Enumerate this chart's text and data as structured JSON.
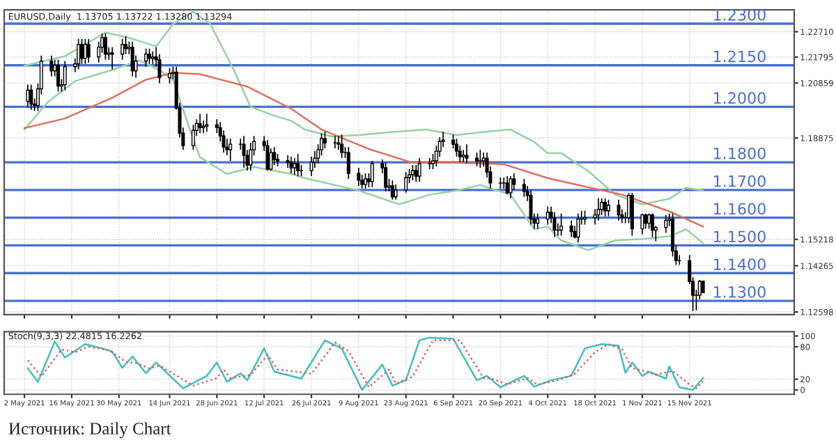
{
  "chart_data": [
    {
      "type": "candlestick",
      "title": "EURUSD,Daily  1.13705 1.13722 1.13280 1.13294",
      "x": [
        "2021-05-03",
        "2021-05-04",
        "2021-05-05",
        "2021-05-06",
        "2021-05-07",
        "2021-05-10",
        "2021-05-11",
        "2021-05-12",
        "2021-05-13",
        "2021-05-14",
        "2021-05-17",
        "2021-05-18",
        "2021-05-19",
        "2021-05-20",
        "2021-05-21",
        "2021-05-24",
        "2021-05-25",
        "2021-05-26",
        "2021-05-27",
        "2021-05-28",
        "2021-05-31",
        "2021-06-01",
        "2021-06-02",
        "2021-06-03",
        "2021-06-04",
        "2021-06-07",
        "2021-06-08",
        "2021-06-09",
        "2021-06-10",
        "2021-06-11",
        "2021-06-14",
        "2021-06-15",
        "2021-06-16",
        "2021-06-17",
        "2021-06-18",
        "2021-06-21",
        "2021-06-22",
        "2021-06-23",
        "2021-06-24",
        "2021-06-25",
        "2021-06-28",
        "2021-06-29",
        "2021-06-30",
        "2021-07-01",
        "2021-07-02",
        "2021-07-05",
        "2021-07-06",
        "2021-07-07",
        "2021-07-08",
        "2021-07-09",
        "2021-07-12",
        "2021-07-13",
        "2021-07-14",
        "2021-07-15",
        "2021-07-16",
        "2021-07-19",
        "2021-07-20",
        "2021-07-21",
        "2021-07-22",
        "2021-07-23",
        "2021-07-26",
        "2021-07-27",
        "2021-07-28",
        "2021-07-29",
        "2021-07-30",
        "2021-08-02",
        "2021-08-03",
        "2021-08-04",
        "2021-08-05",
        "2021-08-06",
        "2021-08-09",
        "2021-08-10",
        "2021-08-11",
        "2021-08-12",
        "2021-08-13",
        "2021-08-16",
        "2021-08-17",
        "2021-08-18",
        "2021-08-19",
        "2021-08-20",
        "2021-08-23",
        "2021-08-24",
        "2021-08-25",
        "2021-08-26",
        "2021-08-27",
        "2021-08-30",
        "2021-08-31",
        "2021-09-01",
        "2021-09-02",
        "2021-09-03",
        "2021-09-06",
        "2021-09-07",
        "2021-09-08",
        "2021-09-09",
        "2021-09-10",
        "2021-09-13",
        "2021-09-14",
        "2021-09-15",
        "2021-09-16",
        "2021-09-17",
        "2021-09-20",
        "2021-09-21",
        "2021-09-22",
        "2021-09-23",
        "2021-09-24",
        "2021-09-27",
        "2021-09-28",
        "2021-09-29",
        "2021-09-30",
        "2021-10-01",
        "2021-10-04",
        "2021-10-05",
        "2021-10-06",
        "2021-10-07",
        "2021-10-08",
        "2021-10-11",
        "2021-10-12",
        "2021-10-13",
        "2021-10-14",
        "2021-10-15",
        "2021-10-18",
        "2021-10-19",
        "2021-10-20",
        "2021-10-21",
        "2021-10-22",
        "2021-10-25",
        "2021-10-26",
        "2021-10-27",
        "2021-10-28",
        "2021-10-29",
        "2021-11-01",
        "2021-11-02",
        "2021-11-03",
        "2021-11-04",
        "2021-11-05",
        "2021-11-08",
        "2021-11-09",
        "2021-11-10",
        "2021-11-11",
        "2021-11-12",
        "2021-11-15",
        "2021-11-16",
        "2021-11-17",
        "2021-11-18",
        "2021-11-19"
      ],
      "ohlc": [
        [
          1.202,
          1.208,
          1.2,
          1.206
        ],
        [
          1.206,
          1.208,
          1.199,
          1.201
        ],
        [
          1.201,
          1.203,
          1.1985,
          1.2005
        ],
        [
          1.2005,
          1.2085,
          1.1985,
          1.2065
        ],
        [
          1.2065,
          1.2185,
          1.2045,
          1.2165
        ],
        [
          1.2165,
          1.2185,
          1.211,
          1.213
        ],
        [
          1.213,
          1.217,
          1.211,
          1.215
        ],
        [
          1.215,
          1.217,
          1.2055,
          1.2075
        ],
        [
          1.2075,
          1.21,
          1.2055,
          1.208
        ],
        [
          1.208,
          1.2165,
          1.206,
          1.2145
        ],
        [
          1.2145,
          1.2175,
          1.2125,
          1.2155
        ],
        [
          1.2155,
          1.2245,
          1.2135,
          1.2225
        ],
        [
          1.2225,
          1.2245,
          1.2155,
          1.2175
        ],
        [
          1.2175,
          1.2245,
          1.2155,
          1.2225
        ],
        [
          1.2225,
          1.2245,
          1.216,
          1.218
        ],
        [
          1.218,
          1.2235,
          1.216,
          1.2215
        ],
        [
          1.2215,
          1.2265,
          1.2195,
          1.225
        ],
        [
          1.225,
          1.2265,
          1.217,
          1.219
        ],
        [
          1.219,
          1.2215,
          1.217,
          1.2195
        ],
        [
          1.2195,
          1.2215,
          1.2135,
          1.219
        ],
        [
          1.219,
          1.2245,
          1.217,
          1.2225
        ],
        [
          1.2225,
          1.2255,
          1.219,
          1.221
        ],
        [
          1.221,
          1.2235,
          1.219,
          1.2215
        ],
        [
          1.2215,
          1.2235,
          1.211,
          1.213
        ],
        [
          1.213,
          1.2185,
          1.2105,
          1.2165
        ],
        [
          1.2165,
          1.221,
          1.2145,
          1.219
        ],
        [
          1.219,
          1.221,
          1.2155,
          1.2175
        ],
        [
          1.2175,
          1.22,
          1.2155,
          1.218
        ],
        [
          1.218,
          1.2215,
          1.2145,
          1.217
        ],
        [
          1.217,
          1.219,
          1.2085,
          1.2105
        ],
        [
          1.2105,
          1.214,
          1.2085,
          1.212
        ],
        [
          1.212,
          1.2145,
          1.21,
          1.2125
        ],
        [
          1.2125,
          1.2145,
          1.199,
          1.1995
        ],
        [
          1.1995,
          1.2015,
          1.189,
          1.1905
        ],
        [
          1.1905,
          1.1925,
          1.1845,
          1.186
        ],
        [
          1.186,
          1.1935,
          1.1845,
          1.1915
        ],
        [
          1.1915,
          1.1955,
          1.1895,
          1.194
        ],
        [
          1.194,
          1.1975,
          1.1905,
          1.1925
        ],
        [
          1.1925,
          1.195,
          1.1905,
          1.193
        ],
        [
          1.193,
          1.1975,
          1.191,
          1.1935
        ],
        [
          1.1935,
          1.1955,
          1.1905,
          1.1925
        ],
        [
          1.1925,
          1.1945,
          1.1875,
          1.1895
        ],
        [
          1.1895,
          1.1915,
          1.1835,
          1.1855
        ],
        [
          1.1855,
          1.1885,
          1.1825,
          1.1845
        ],
        [
          1.1845,
          1.1885,
          1.1805,
          1.1865
        ],
        [
          1.1865,
          1.1885,
          1.1845,
          1.1865
        ],
        [
          1.1865,
          1.1895,
          1.178,
          1.1825
        ],
        [
          1.1825,
          1.1845,
          1.177,
          1.179
        ],
        [
          1.179,
          1.187,
          1.177,
          1.1845
        ],
        [
          1.1845,
          1.1895,
          1.1825,
          1.1875
        ],
        [
          1.1875,
          1.1895,
          1.184,
          1.186
        ],
        [
          1.186,
          1.188,
          1.177,
          1.1775
        ],
        [
          1.1775,
          1.185,
          1.177,
          1.1835
        ],
        [
          1.1835,
          1.1855,
          1.179,
          1.181
        ],
        [
          1.181,
          1.183,
          1.1785,
          1.1805
        ],
        [
          1.1805,
          1.1825,
          1.178,
          1.18
        ],
        [
          1.18,
          1.182,
          1.176,
          1.178
        ],
        [
          1.178,
          1.1815,
          1.1755,
          1.1795
        ],
        [
          1.1795,
          1.183,
          1.175,
          1.177
        ],
        [
          1.177,
          1.179,
          1.175,
          1.177
        ],
        [
          1.177,
          1.182,
          1.175,
          1.18
        ],
        [
          1.18,
          1.184,
          1.178,
          1.1815
        ],
        [
          1.1815,
          1.1865,
          1.1795,
          1.1845
        ],
        [
          1.1845,
          1.1905,
          1.1825,
          1.1885
        ],
        [
          1.1885,
          1.191,
          1.185,
          1.187
        ],
        [
          1.187,
          1.1895,
          1.185,
          1.187
        ],
        [
          1.187,
          1.1895,
          1.1845,
          1.1865
        ],
        [
          1.1865,
          1.19,
          1.1815,
          1.1835
        ],
        [
          1.1835,
          1.1855,
          1.1815,
          1.1835
        ],
        [
          1.1835,
          1.1855,
          1.174,
          1.176
        ],
        [
          1.176,
          1.178,
          1.1715,
          1.1735
        ],
        [
          1.1735,
          1.1755,
          1.1705,
          1.172
        ],
        [
          1.172,
          1.176,
          1.1705,
          1.174
        ],
        [
          1.174,
          1.176,
          1.171,
          1.173
        ],
        [
          1.173,
          1.1805,
          1.171,
          1.1795
        ],
        [
          1.1795,
          1.181,
          1.176,
          1.178
        ],
        [
          1.178,
          1.18,
          1.1695,
          1.171
        ],
        [
          1.171,
          1.174,
          1.1695,
          1.1715
        ],
        [
          1.1715,
          1.1735,
          1.1665,
          1.1675
        ],
        [
          1.1675,
          1.172,
          1.1665,
          1.17
        ],
        [
          1.17,
          1.1765,
          1.169,
          1.1745
        ],
        [
          1.1745,
          1.1775,
          1.1725,
          1.1755
        ],
        [
          1.1755,
          1.179,
          1.1735,
          1.177
        ],
        [
          1.177,
          1.179,
          1.173,
          1.175
        ],
        [
          1.175,
          1.1815,
          1.173,
          1.1795
        ],
        [
          1.1795,
          1.1815,
          1.1775,
          1.1795
        ],
        [
          1.1795,
          1.183,
          1.1775,
          1.1805
        ],
        [
          1.1805,
          1.186,
          1.1785,
          1.184
        ],
        [
          1.184,
          1.189,
          1.182,
          1.1875
        ],
        [
          1.1875,
          1.191,
          1.1855,
          1.188
        ],
        [
          1.188,
          1.19,
          1.185,
          1.1865
        ],
        [
          1.1865,
          1.1885,
          1.182,
          1.184
        ],
        [
          1.184,
          1.186,
          1.18,
          1.182
        ],
        [
          1.182,
          1.1845,
          1.18,
          1.1825
        ],
        [
          1.1825,
          1.1865,
          1.1795,
          1.1815
        ],
        [
          1.1815,
          1.1835,
          1.1785,
          1.1805
        ],
        [
          1.1805,
          1.1845,
          1.178,
          1.1805
        ],
        [
          1.1805,
          1.1835,
          1.1785,
          1.1815
        ],
        [
          1.1815,
          1.1835,
          1.1745,
          1.1765
        ],
        [
          1.1765,
          1.1785,
          1.1705,
          1.1725
        ],
        [
          1.1725,
          1.1745,
          1.1705,
          1.1725
        ],
        [
          1.1725,
          1.1745,
          1.1705,
          1.1725
        ],
        [
          1.1725,
          1.175,
          1.1685,
          1.169
        ],
        [
          1.169,
          1.175,
          1.167,
          1.174
        ],
        [
          1.174,
          1.176,
          1.17,
          1.172
        ],
        [
          1.172,
          1.174,
          1.1675,
          1.1695
        ],
        [
          1.1695,
          1.1715,
          1.166,
          1.168
        ],
        [
          1.168,
          1.17,
          1.1575,
          1.1595
        ],
        [
          1.1595,
          1.1615,
          1.156,
          1.158
        ],
        [
          1.158,
          1.1615,
          1.156,
          1.1595
        ],
        [
          1.1595,
          1.164,
          1.1575,
          1.162
        ],
        [
          1.162,
          1.164,
          1.158,
          1.16
        ],
        [
          1.16,
          1.162,
          1.153,
          1.1555
        ],
        [
          1.1555,
          1.158,
          1.1535,
          1.1555
        ],
        [
          1.1555,
          1.1615,
          1.1535,
          1.157
        ],
        [
          1.157,
          1.159,
          1.153,
          1.155
        ],
        [
          1.155,
          1.157,
          1.1525,
          1.153
        ],
        [
          1.153,
          1.1615,
          1.151,
          1.1595
        ],
        [
          1.1595,
          1.1625,
          1.1575,
          1.1595
        ],
        [
          1.1595,
          1.1625,
          1.1575,
          1.16
        ],
        [
          1.16,
          1.163,
          1.1575,
          1.161
        ],
        [
          1.161,
          1.167,
          1.159,
          1.163
        ],
        [
          1.163,
          1.167,
          1.161,
          1.1655
        ],
        [
          1.1655,
          1.167,
          1.1605,
          1.1625
        ],
        [
          1.1625,
          1.1665,
          1.1605,
          1.1645
        ],
        [
          1.1645,
          1.1665,
          1.159,
          1.161
        ],
        [
          1.161,
          1.163,
          1.158,
          1.16
        ],
        [
          1.16,
          1.162,
          1.158,
          1.16
        ],
        [
          1.16,
          1.169,
          1.158,
          1.168
        ],
        [
          1.168,
          1.169,
          1.1535,
          1.156
        ],
        [
          1.156,
          1.1615,
          1.154,
          1.161
        ],
        [
          1.161,
          1.1615,
          1.156,
          1.158
        ],
        [
          1.158,
          1.1615,
          1.156,
          1.161
        ],
        [
          1.161,
          1.1615,
          1.153,
          1.1555
        ],
        [
          1.1555,
          1.157,
          1.1515,
          1.1565
        ],
        [
          1.1565,
          1.161,
          1.1545,
          1.159
        ],
        [
          1.159,
          1.1615,
          1.157,
          1.1595
        ],
        [
          1.1595,
          1.1615,
          1.146,
          1.148
        ],
        [
          1.148,
          1.15,
          1.143,
          1.1445
        ],
        [
          1.1445,
          1.1465,
          1.143,
          1.1445
        ],
        [
          1.1445,
          1.1465,
          1.136,
          1.137
        ],
        [
          1.137,
          1.1385,
          1.1263,
          1.132
        ],
        [
          1.132,
          1.134,
          1.1265,
          1.132
        ],
        [
          1.132,
          1.1375,
          1.1305,
          1.13705
        ],
        [
          1.13705,
          1.13722,
          1.1328,
          1.13294
        ]
      ],
      "series": [
        {
          "type": "line",
          "color": "#93d3a2",
          "x": [
            "2021-05-02",
            "2021-05-14",
            "2021-05-26",
            "2021-06-02",
            "2021-06-10",
            "2021-06-15",
            "2021-06-21",
            "2021-06-26",
            "2021-07-03",
            "2021-07-08",
            "2021-07-15",
            "2021-07-20",
            "2021-07-24",
            "2021-08-01",
            "2021-08-09",
            "2021-08-18",
            "2021-08-29",
            "2021-09-07",
            "2021-09-14",
            "2021-09-23",
            "2021-09-30",
            "2021-10-04",
            "2021-10-08",
            "2021-10-16",
            "2021-10-24",
            "2021-11-01",
            "2021-11-09",
            "2021-11-14",
            "2021-11-19"
          ],
          "values": [
            1.2148,
            1.2183,
            1.2268,
            1.2249,
            1.2218,
            1.2299,
            1.2343,
            1.23,
            1.2133,
            1.2,
            1.1968,
            1.195,
            1.1918,
            1.1893,
            1.1898,
            1.1908,
            1.1918,
            1.1898,
            1.1908,
            1.1918,
            1.1873,
            1.1833,
            1.1833,
            1.1768,
            1.1683,
            1.1648,
            1.1668,
            1.1708,
            1.1698
          ]
        },
        {
          "type": "line",
          "color": "#93d3a2",
          "x": [
            "2021-05-02",
            "2021-05-09",
            "2021-05-17",
            "2021-05-28",
            "2021-06-05",
            "2021-06-11",
            "2021-06-15",
            "2021-06-21",
            "2021-06-23",
            "2021-07-01",
            "2021-07-09",
            "2021-07-20",
            "2021-07-24",
            "2021-08-09",
            "2021-08-21",
            "2021-08-30",
            "2021-09-07",
            "2021-09-14",
            "2021-09-23",
            "2021-09-30",
            "2021-10-04",
            "2021-10-08",
            "2021-10-16",
            "2021-10-24",
            "2021-11-01",
            "2021-11-09",
            "2021-11-14",
            "2021-11-19"
          ],
          "values": [
            1.1918,
            1.2018,
            1.2093,
            1.2133,
            1.2168,
            1.2133,
            1.2098,
            1.1883,
            1.1818,
            1.1758,
            1.1783,
            1.1758,
            1.1743,
            1.1698,
            1.1648,
            1.1683,
            1.1698,
            1.1718,
            1.1683,
            1.1558,
            1.1568,
            1.1518,
            1.1483,
            1.1518,
            1.1523,
            1.1533,
            1.1558,
            1.1508
          ]
        },
        {
          "type": "line",
          "color": "#e0705e",
          "x": [
            "2021-05-02",
            "2021-05-14",
            "2021-05-28",
            "2021-06-07",
            "2021-06-15",
            "2021-06-23",
            "2021-07-07",
            "2021-07-20",
            "2021-07-29",
            "2021-08-12",
            "2021-08-25",
            "2021-09-07",
            "2021-09-21",
            "2021-09-30",
            "2021-10-04",
            "2021-10-13",
            "2021-10-26",
            "2021-11-09",
            "2021-11-19"
          ],
          "values": [
            1.1923,
            1.1958,
            1.2033,
            1.2098,
            1.2123,
            1.2118,
            1.2073,
            1.1993,
            1.1918,
            1.1848,
            1.1798,
            1.1798,
            1.1793,
            1.1758,
            1.1743,
            1.1718,
            1.1683,
            1.1623,
            1.1568
          ]
        }
      ],
      "xlim": [
        "2021-04-26",
        "2021-12-16"
      ],
      "xticks": [
        {
          "value": "2021-05-02",
          "label": null
        },
        {
          "value": "2021-05-16",
          "label": null
        },
        {
          "value": "2021-05-30",
          "label": null
        },
        {
          "value": "2021-06-14",
          "label": null
        },
        {
          "value": "2021-06-28",
          "label": null
        },
        {
          "value": "2021-07-12",
          "label": null
        },
        {
          "value": "2021-07-26",
          "label": null
        },
        {
          "value": "2021-08-09",
          "label": null
        },
        {
          "value": "2021-08-23",
          "label": null
        },
        {
          "value": "2021-09-06",
          "label": null
        },
        {
          "value": "2021-09-20",
          "label": null
        },
        {
          "value": "2021-10-04",
          "label": null
        },
        {
          "value": "2021-10-18",
          "label": null
        },
        {
          "value": "2021-11-01",
          "label": null
        },
        {
          "value": "2021-11-15",
          "label": null
        }
      ],
      "ylim": [
        1.125,
        1.235
      ],
      "yticks": [
        {
          "value": 1.2271,
          "label": "1.22710"
        },
        {
          "value": 1.21795,
          "label": "1.21795"
        },
        {
          "value": 1.20859,
          "label": "1.20859"
        },
        {
          "value": 1.18875,
          "label": "1.18875"
        },
        {
          "value": 1.15218,
          "label": "1.15218"
        },
        {
          "value": 1.14265,
          "label": "1.14265"
        },
        {
          "value": 1.12598,
          "label": "1.12598"
        }
      ],
      "ref_lines": [
        {
          "axis": "y",
          "value": 1.23,
          "label": "1.2300",
          "color": "#4a6fd0"
        },
        {
          "axis": "y",
          "value": 1.215,
          "label": "1.2150",
          "color": "#4a6fd0"
        },
        {
          "axis": "y",
          "value": 1.2,
          "label": "1.2000",
          "color": "#4a6fd0"
        },
        {
          "axis": "y",
          "value": 1.18,
          "label": "1.1800",
          "color": "#4a6fd0"
        },
        {
          "axis": "y",
          "value": 1.17,
          "label": "1.1700",
          "color": "#4a6fd0"
        },
        {
          "axis": "y",
          "value": 1.16,
          "label": "1.1600",
          "color": "#4a6fd0"
        },
        {
          "axis": "y",
          "value": 1.15,
          "label": "1.1500",
          "color": "#4a6fd0"
        },
        {
          "axis": "y",
          "value": 1.14,
          "label": "1.1400",
          "color": "#4a6fd0"
        },
        {
          "axis": "y",
          "value": 1.13,
          "label": "1.1300",
          "color": "#4a6fd0"
        }
      ],
      "grid": true,
      "tick_labels": "y",
      "annotations": [
        "Источник: Daily Chart"
      ]
    },
    {
      "type": "line",
      "title": "Stoch(9,3,3) 22.4815 16.2262",
      "series": [
        {
          "color": "#3fbfbf",
          "x": [
            "2021-05-03",
            "2021-05-06",
            "2021-05-11",
            "2021-05-14",
            "2021-05-20",
            "2021-05-25",
            "2021-05-28",
            "2021-05-31",
            "2021-06-03",
            "2021-06-07",
            "2021-06-10",
            "2021-06-18",
            "2021-06-25",
            "2021-06-28",
            "2021-07-01",
            "2021-07-05",
            "2021-07-07",
            "2021-07-12",
            "2021-07-15",
            "2021-07-23",
            "2021-07-30",
            "2021-08-04",
            "2021-08-10",
            "2021-08-16",
            "2021-08-19",
            "2021-08-23",
            "2021-08-27",
            "2021-08-30",
            "2021-09-06",
            "2021-09-13",
            "2021-09-16",
            "2021-09-20",
            "2021-09-27",
            "2021-09-30",
            "2021-10-05",
            "2021-10-11",
            "2021-10-15",
            "2021-10-20",
            "2021-10-25",
            "2021-10-27",
            "2021-10-29",
            "2021-11-01",
            "2021-11-03",
            "2021-11-08",
            "2021-11-09",
            "2021-11-12",
            "2021-11-16",
            "2021-11-19"
          ],
          "values": [
            40,
            15,
            90,
            60,
            85,
            77,
            71,
            41,
            62,
            31,
            51,
            3,
            26,
            51,
            15,
            31,
            18,
            77,
            34,
            21,
            92,
            77,
            0,
            47,
            8,
            18,
            92,
            97,
            95,
            18,
            26,
            5,
            26,
            6,
            18,
            26,
            77,
            85,
            82,
            32,
            51,
            26,
            34,
            21,
            44,
            5,
            0,
            22
          ]
        },
        {
          "color": "#e05a5a",
          "line_style": "dotted",
          "x": [
            "2021-05-03",
            "2021-05-07",
            "2021-05-13",
            "2021-05-17",
            "2021-05-21",
            "2021-05-27",
            "2021-06-01",
            "2021-06-04",
            "2021-06-08",
            "2021-06-11",
            "2021-06-21",
            "2021-06-28",
            "2021-06-30",
            "2021-07-02",
            "2021-07-08",
            "2021-07-13",
            "2021-07-16",
            "2021-07-26",
            "2021-08-02",
            "2021-08-06",
            "2021-08-12",
            "2021-08-18",
            "2021-08-20",
            "2021-08-25",
            "2021-08-31",
            "2021-09-08",
            "2021-09-15",
            "2021-09-17",
            "2021-09-22",
            "2021-09-28",
            "2021-10-01",
            "2021-10-07",
            "2021-10-12",
            "2021-10-18",
            "2021-10-22",
            "2021-10-26",
            "2021-10-29",
            "2021-11-02",
            "2021-11-05",
            "2021-11-10",
            "2021-11-15",
            "2021-11-17",
            "2021-11-19"
          ],
          "values": [
            55,
            25,
            75,
            70,
            80,
            74,
            52,
            50,
            40,
            45,
            8,
            22,
            38,
            22,
            28,
            65,
            38,
            30,
            88,
            72,
            5,
            38,
            12,
            25,
            92,
            92,
            22,
            22,
            10,
            22,
            10,
            18,
            30,
            70,
            85,
            75,
            40,
            35,
            28,
            35,
            10,
            3,
            16
          ]
        }
      ],
      "xlim": [
        "2021-04-26",
        "2021-12-16"
      ],
      "xticks": [
        {
          "value": "2021-05-02",
          "label": "2 May 2021"
        },
        {
          "value": "2021-05-16",
          "label": "16 May 2021"
        },
        {
          "value": "2021-05-30",
          "label": "30 May 2021"
        },
        {
          "value": "2021-06-14",
          "label": "14 Jun 2021"
        },
        {
          "value": "2021-06-28",
          "label": "28 Jun 2021"
        },
        {
          "value": "2021-07-12",
          "label": "12 Jul 2021"
        },
        {
          "value": "2021-07-26",
          "label": "26 Jul 2021"
        },
        {
          "value": "2021-08-09",
          "label": "9 Aug 2021"
        },
        {
          "value": "2021-08-23",
          "label": "23 Aug 2021"
        },
        {
          "value": "2021-09-06",
          "label": "6 Sep 2021"
        },
        {
          "value": "2021-09-20",
          "label": "20 Sep 2021"
        },
        {
          "value": "2021-10-04",
          "label": "4 Oct 2021"
        },
        {
          "value": "2021-10-18",
          "label": "18 Oct 2021"
        },
        {
          "value": "2021-11-01",
          "label": "1 Nov 2021"
        },
        {
          "value": "2021-11-15",
          "label": "15 Nov 2021"
        }
      ],
      "ylim": [
        -8,
        108
      ],
      "yticks": [
        100,
        80,
        20,
        0
      ],
      "grid": true
    }
  ]
}
